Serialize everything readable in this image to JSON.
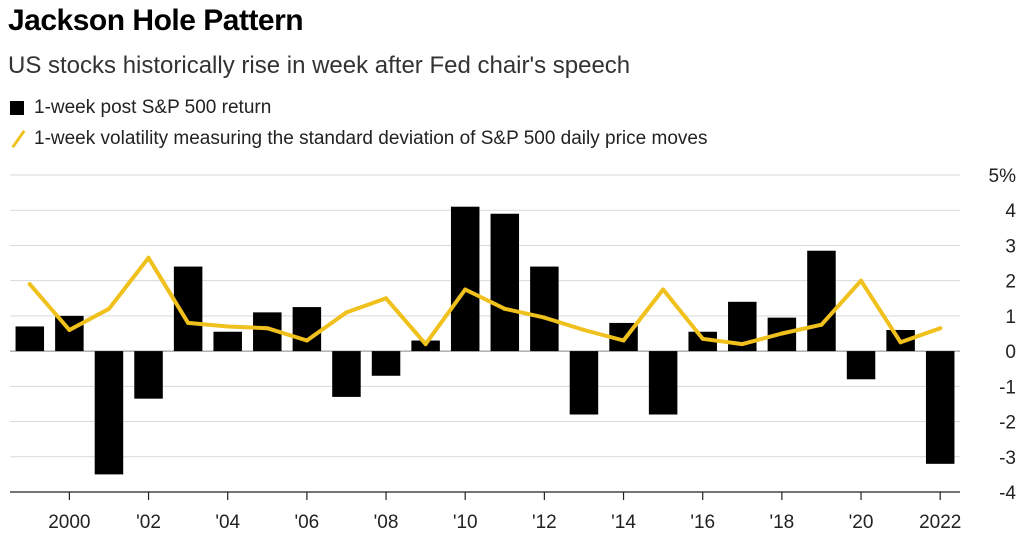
{
  "header": {
    "title": "Jackson Hole Pattern",
    "subtitle": "US stocks historically rise in week after Fed chair's speech"
  },
  "legend": {
    "bars_label": "1-week post S&P 500 return",
    "line_label": "1-week volatility measuring the standard deviation of S&P 500 daily price moves"
  },
  "colors": {
    "bar": "#000000",
    "line": "#f0c11c",
    "grid": "#d9d9d9"
  },
  "chart_data": {
    "type": "bar",
    "x": [
      1999,
      2000,
      2001,
      2002,
      2003,
      2004,
      2005,
      2006,
      2007,
      2008,
      2009,
      2010,
      2011,
      2012,
      2013,
      2014,
      2015,
      2016,
      2017,
      2018,
      2019,
      2020,
      2021,
      2022
    ],
    "series": [
      {
        "name": "1-week post S&P 500 return",
        "type": "bar",
        "values": [
          0.7,
          1.0,
          -3.5,
          -1.35,
          2.4,
          0.55,
          1.1,
          1.25,
          -1.3,
          -0.7,
          0.3,
          4.1,
          3.9,
          2.4,
          -1.8,
          0.8,
          -1.8,
          0.55,
          1.4,
          0.95,
          2.85,
          -0.8,
          0.6,
          -3.2
        ]
      },
      {
        "name": "1-week volatility measuring the standard deviation of S&P 500 daily price moves",
        "type": "line",
        "values": [
          1.9,
          0.6,
          1.2,
          2.65,
          0.8,
          0.7,
          0.65,
          0.3,
          1.1,
          1.5,
          0.2,
          1.75,
          1.2,
          0.95,
          0.6,
          0.3,
          1.75,
          0.35,
          0.2,
          0.5,
          0.75,
          2.0,
          0.25,
          0.65
        ]
      }
    ],
    "xtick_values": [
      2000,
      2002,
      2004,
      2006,
      2008,
      2010,
      2012,
      2014,
      2016,
      2018,
      2020,
      2022
    ],
    "xtick_labels": [
      "2000",
      "'02",
      "'04",
      "'06",
      "'08",
      "'10",
      "'12",
      "'14",
      "'16",
      "'18",
      "'20",
      "2022"
    ],
    "ytick_values": [
      5,
      4,
      3,
      2,
      1,
      0,
      -1,
      -2,
      -3,
      -4
    ],
    "ytick_labels": [
      "5%",
      "4",
      "3",
      "2",
      "1",
      "0",
      "-1",
      "-2",
      "-3",
      "-4"
    ],
    "ylim": [
      -4,
      5
    ],
    "grid": true,
    "legend_position": "top-left"
  }
}
